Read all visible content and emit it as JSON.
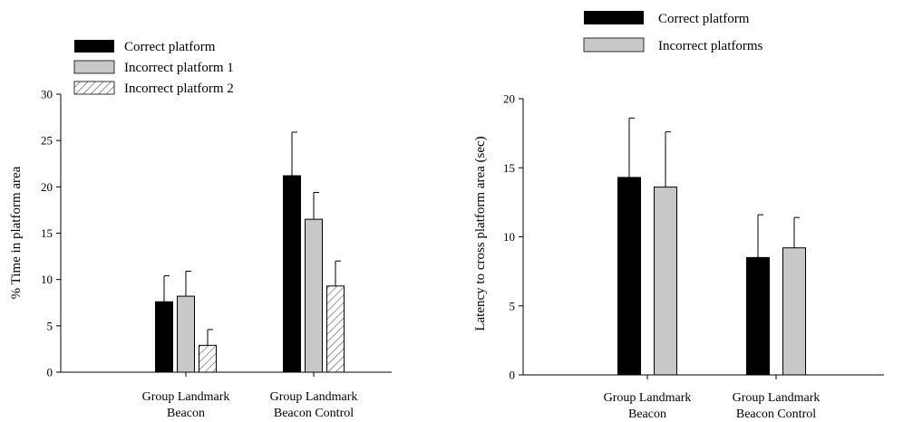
{
  "chart_data": [
    {
      "type": "bar",
      "title": "",
      "xlabel": "",
      "ylabel": "% Time in platform area",
      "ylim": [
        0,
        30
      ],
      "yticks": [
        0,
        5,
        10,
        15,
        20,
        25,
        30
      ],
      "categories": [
        [
          "Group Landmark",
          "Beacon"
        ],
        [
          "Group Landmark",
          "Beacon Control"
        ]
      ],
      "series": [
        {
          "name": "Correct platform",
          "values": [
            7.6,
            21.2
          ],
          "errors": [
            2.8,
            4.7
          ],
          "color": "#000000",
          "pattern": "solid"
        },
        {
          "name": "Incorrect platform 1",
          "values": [
            8.2,
            16.5
          ],
          "errors": [
            2.7,
            2.9
          ],
          "color": "#c8c8c8",
          "pattern": "solid"
        },
        {
          "name": "Incorrect platform 2",
          "values": [
            2.9,
            9.3
          ],
          "errors": [
            1.7,
            2.7
          ],
          "color": "#ffffff",
          "pattern": "hatch"
        }
      ],
      "legend_position": "top-left",
      "grid": false
    },
    {
      "type": "bar",
      "title": "",
      "xlabel": "",
      "ylabel": "Latency to cross platform area (sec)",
      "ylim": [
        0,
        20
      ],
      "yticks": [
        0,
        5,
        10,
        15,
        20
      ],
      "categories": [
        [
          "Group Landmark",
          "Beacon"
        ],
        [
          "Group Landmark",
          "Beacon Control"
        ]
      ],
      "series": [
        {
          "name": "Correct platform",
          "values": [
            14.3,
            8.5
          ],
          "errors": [
            4.3,
            3.1
          ],
          "color": "#000000",
          "pattern": "solid"
        },
        {
          "name": "Incorrect platforms",
          "values": [
            13.6,
            9.2
          ],
          "errors": [
            4.0,
            2.2
          ],
          "color": "#c8c8c8",
          "pattern": "solid"
        }
      ],
      "legend_position": "top",
      "grid": false
    }
  ]
}
